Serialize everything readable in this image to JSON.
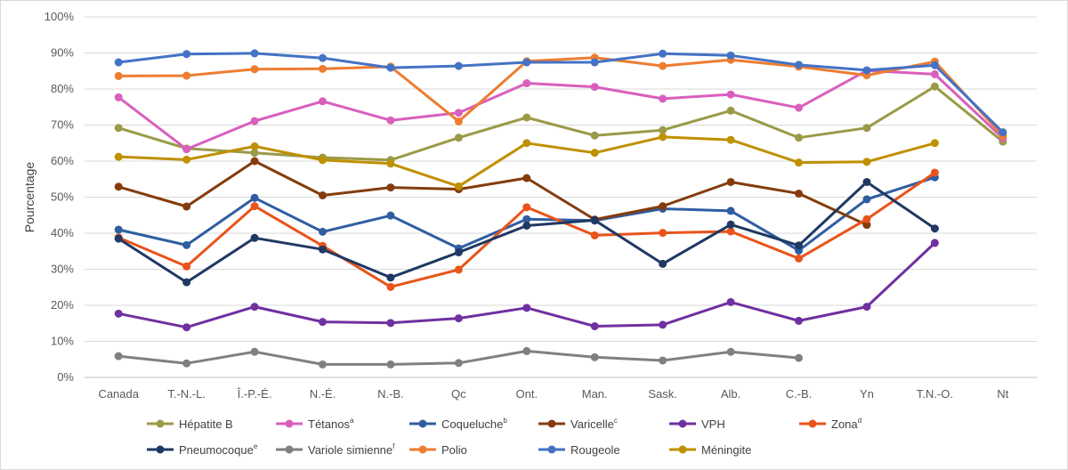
{
  "chart_data": {
    "type": "line",
    "title": "",
    "xlabel": "",
    "ylabel": "Pourcentage",
    "ylim": [
      0,
      100
    ],
    "y_ticks": [
      "0%",
      "10%",
      "20%",
      "30%",
      "40%",
      "50%",
      "60%",
      "70%",
      "80%",
      "90%",
      "100%"
    ],
    "grid": "horizontal",
    "legend_position": "bottom",
    "categories": [
      "Canada",
      "T.-N.-L.",
      "Î.-P.-É.",
      "N.-É.",
      "N.-B.",
      "Qc",
      "Ont.",
      "Man.",
      "Sask.",
      "Alb.",
      "C.-B.",
      "Yn",
      "T.N.-O.",
      "Nt"
    ],
    "series": [
      {
        "name": "Hépatite B",
        "sup": "",
        "color": "#9a9a48",
        "values": [
          69.2,
          63.5,
          62.3,
          61.0,
          60.3,
          66.5,
          72.1,
          67.1,
          68.6,
          74.0,
          66.5,
          69.2,
          80.7,
          65.4
        ]
      },
      {
        "name": "Tétanos",
        "sup": "a",
        "color": "#d95fbe",
        "values": [
          77.7,
          63.3,
          71.1,
          76.6,
          71.3,
          73.4,
          81.6,
          80.6,
          77.3,
          78.5,
          74.8,
          85.1,
          84.1,
          66.4
        ]
      },
      {
        "name": "Coqueluche",
        "sup": "b",
        "color": "#2f5da0",
        "values": [
          41.0,
          36.7,
          49.8,
          40.4,
          44.9,
          35.8,
          43.9,
          43.5,
          46.8,
          46.2,
          35.2,
          49.4,
          55.5,
          null
        ]
      },
      {
        "name": "Varicelle",
        "sup": "c",
        "color": "#843c0c",
        "values": [
          52.9,
          47.4,
          60.0,
          50.5,
          52.7,
          52.2,
          55.3,
          43.8,
          47.5,
          54.2,
          51.0,
          42.3,
          null,
          null
        ]
      },
      {
        "name": "VPH",
        "sup": "",
        "color": "#7030a0",
        "values": [
          17.7,
          13.9,
          19.6,
          15.4,
          15.1,
          16.4,
          19.3,
          14.2,
          14.6,
          20.9,
          15.7,
          19.6,
          37.3,
          null
        ]
      },
      {
        "name": "Zona",
        "sup": "d",
        "color": "#e8541a",
        "values": [
          38.8,
          30.8,
          47.5,
          36.5,
          25.1,
          29.9,
          47.2,
          39.4,
          40.1,
          40.5,
          33.0,
          43.9,
          56.8,
          null
        ]
      },
      {
        "name": "Pneumocoque",
        "sup": "e",
        "color": "#1f3864",
        "values": [
          38.5,
          26.4,
          38.7,
          35.5,
          27.7,
          34.7,
          42.1,
          43.6,
          31.5,
          42.4,
          36.6,
          54.2,
          41.3,
          null
        ]
      },
      {
        "name": "Variole simienne",
        "sup": "f",
        "color": "#808080",
        "values": [
          5.9,
          3.9,
          7.1,
          3.6,
          3.6,
          4.0,
          7.3,
          5.6,
          4.7,
          7.1,
          5.4,
          null,
          null,
          null
        ]
      },
      {
        "name": "Polio",
        "sup": "",
        "color": "#ed7d31",
        "values": [
          83.6,
          83.7,
          85.5,
          85.6,
          86.2,
          71.0,
          87.7,
          88.7,
          86.4,
          88.1,
          86.2,
          83.8,
          87.6,
          67.0
        ]
      },
      {
        "name": "Rougeole",
        "sup": "",
        "color": "#4472c4",
        "values": [
          87.4,
          89.7,
          89.9,
          88.6,
          85.9,
          86.4,
          87.4,
          87.4,
          89.8,
          89.3,
          86.7,
          85.2,
          86.6,
          68.0
        ]
      },
      {
        "name": "Méningite",
        "sup": "",
        "color": "#bf9000",
        "values": [
          61.2,
          60.4,
          64.1,
          60.3,
          59.3,
          53.0,
          65.0,
          62.3,
          66.7,
          65.9,
          59.6,
          59.8,
          65.0,
          null
        ]
      }
    ]
  }
}
